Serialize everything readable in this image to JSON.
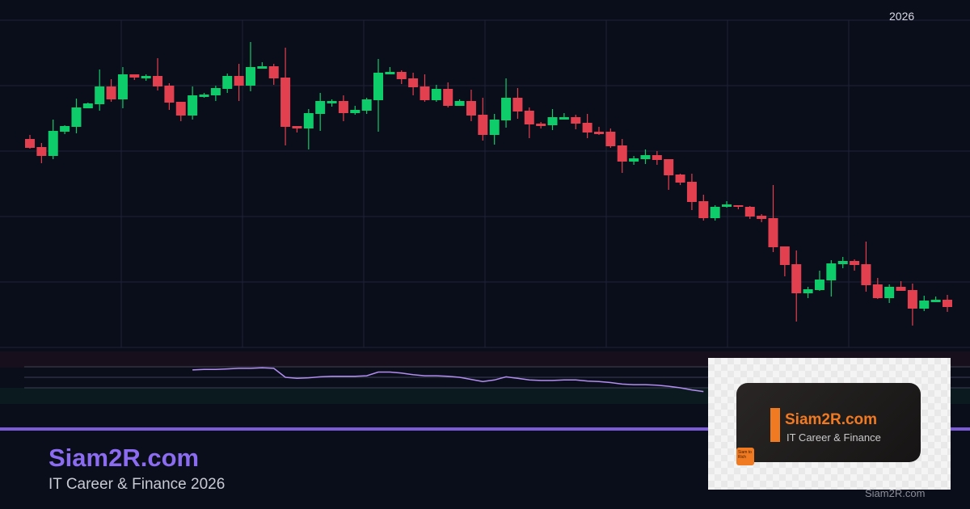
{
  "header": {
    "year_label": "2026"
  },
  "brand": {
    "title": "Siam2R.com",
    "subtitle": "IT Career & Finance 2026",
    "watermark": "Siam2R.com"
  },
  "logo": {
    "name": "Siam2R.com",
    "tagline": "IT Career & Finance",
    "badge": "Siam to Rich"
  },
  "colors": {
    "background": "#0a0d1a",
    "up": "#0fcc6a",
    "down": "#e2404f",
    "rsi": "#b28ef0",
    "accent": "#7b5cd6",
    "logo_orange": "#f07a22"
  },
  "chart_data": [
    {
      "type": "candlestick",
      "title": "",
      "xlabel": "",
      "ylabel": "",
      "axis_labels_shown": false,
      "grid": true,
      "ohlc": [
        [
          258,
          247,
          263,
          246
        ],
        [
          248,
          237,
          253,
          228
        ],
        [
          237,
          268,
          282,
          233
        ],
        [
          267,
          274,
          275,
          264
        ],
        [
          273,
          297,
          308,
          265
        ],
        [
          296,
          302,
          303,
          296
        ],
        [
          301,
          323,
          344,
          293
        ],
        [
          323,
          307,
          332,
          304
        ],
        [
          307,
          338,
          347,
          296
        ],
        [
          338,
          334,
          338,
          331
        ],
        [
          333,
          336,
          338,
          330
        ],
        [
          336,
          323,
          358,
          318
        ],
        [
          324,
          303,
          327,
          294
        ],
        [
          304,
          287,
          304,
          280
        ],
        [
          287,
          312,
          323,
          282
        ],
        [
          310,
          313,
          315,
          309
        ],
        [
          312,
          321,
          324,
          305
        ],
        [
          320,
          336,
          339,
          315
        ],
        [
          336,
          324,
          351,
          305
        ],
        [
          324,
          347,
          378,
          317
        ],
        [
          345,
          348,
          353,
          345
        ],
        [
          348,
          333,
          351,
          325
        ],
        [
          334,
          273,
          371,
          250
        ],
        [
          274,
          271,
          274,
          266
        ],
        [
          271,
          290,
          295,
          245
        ],
        [
          289,
          305,
          315,
          268
        ],
        [
          302,
          305,
          307,
          298
        ],
        [
          305,
          290,
          312,
          280
        ],
        [
          290,
          294,
          299,
          288
        ],
        [
          293,
          307,
          309,
          289
        ],
        [
          306,
          340,
          357,
          267
        ],
        [
          338,
          341,
          347,
          338
        ],
        [
          341,
          332,
          343,
          326
        ],
        [
          333,
          322,
          340,
          312
        ],
        [
          323,
          306,
          338,
          304
        ],
        [
          306,
          320,
          325,
          304
        ],
        [
          320,
          299,
          328,
          297
        ],
        [
          299,
          305,
          307,
          299
        ],
        [
          305,
          287,
          319,
          280
        ],
        [
          288,
          263,
          309,
          256
        ],
        [
          263,
          282,
          289,
          251
        ],
        [
          281,
          309,
          333,
          272
        ],
        [
          309,
          292,
          321,
          283
        ],
        [
          293,
          276,
          297,
          259
        ],
        [
          277,
          274,
          279,
          271
        ],
        [
          275,
          285,
          295,
          269
        ],
        [
          282,
          285,
          290,
          282
        ],
        [
          285,
          277,
          288,
          270
        ],
        [
          278,
          266,
          289,
          259
        ],
        [
          267,
          264,
          273,
          263
        ],
        [
          267,
          249,
          271,
          247
        ],
        [
          250,
          230,
          258,
          216
        ],
        [
          230,
          234,
          237,
          226
        ],
        [
          233,
          238,
          245,
          227
        ],
        [
          238,
          232,
          243,
          226
        ],
        [
          233,
          213,
          233,
          195
        ],
        [
          214,
          204,
          215,
          201
        ],
        [
          205,
          180,
          215,
          170
        ],
        [
          181,
          160,
          189,
          157
        ],
        [
          160,
          174,
          176,
          157
        ],
        [
          174,
          177,
          181,
          173
        ],
        [
          176,
          174,
          176,
          171
        ],
        [
          174,
          162,
          175,
          159
        ],
        [
          163,
          159,
          165,
          155
        ],
        [
          160,
          124,
          201,
          118
        ],
        [
          125,
          102,
          125,
          88
        ],
        [
          103,
          67,
          120,
          32
        ],
        [
          67,
          72,
          75,
          61
        ],
        [
          71,
          84,
          95,
          70
        ],
        [
          83,
          104,
          108,
          63
        ],
        [
          103,
          107,
          112,
          98
        ],
        [
          107,
          102,
          109,
          95
        ],
        [
          103,
          77,
          131,
          69
        ],
        [
          78,
          61,
          86,
          60
        ],
        [
          61,
          75,
          78,
          55
        ],
        [
          75,
          70,
          82,
          70
        ],
        [
          71,
          48,
          79,
          27
        ],
        [
          48,
          58,
          64,
          45
        ],
        [
          56,
          59,
          63,
          56
        ],
        [
          59,
          50,
          65,
          44
        ]
      ],
      "ohlc_order": [
        "open",
        "close",
        "high",
        "low"
      ]
    },
    {
      "type": "line",
      "title": "",
      "ylim": [
        0,
        100
      ],
      "reference_levels": [
        70,
        50,
        30
      ],
      "start_index": 14,
      "values": [
        64,
        65,
        65,
        66,
        67,
        67,
        68,
        67,
        50,
        48,
        49,
        51,
        52,
        52,
        52,
        53,
        60,
        60,
        58,
        55,
        53,
        53,
        52,
        50,
        46,
        42,
        45,
        51,
        48,
        45,
        44,
        44,
        45,
        45,
        43,
        42,
        40,
        37,
        36,
        36,
        35,
        33,
        30,
        26,
        23
      ]
    }
  ]
}
